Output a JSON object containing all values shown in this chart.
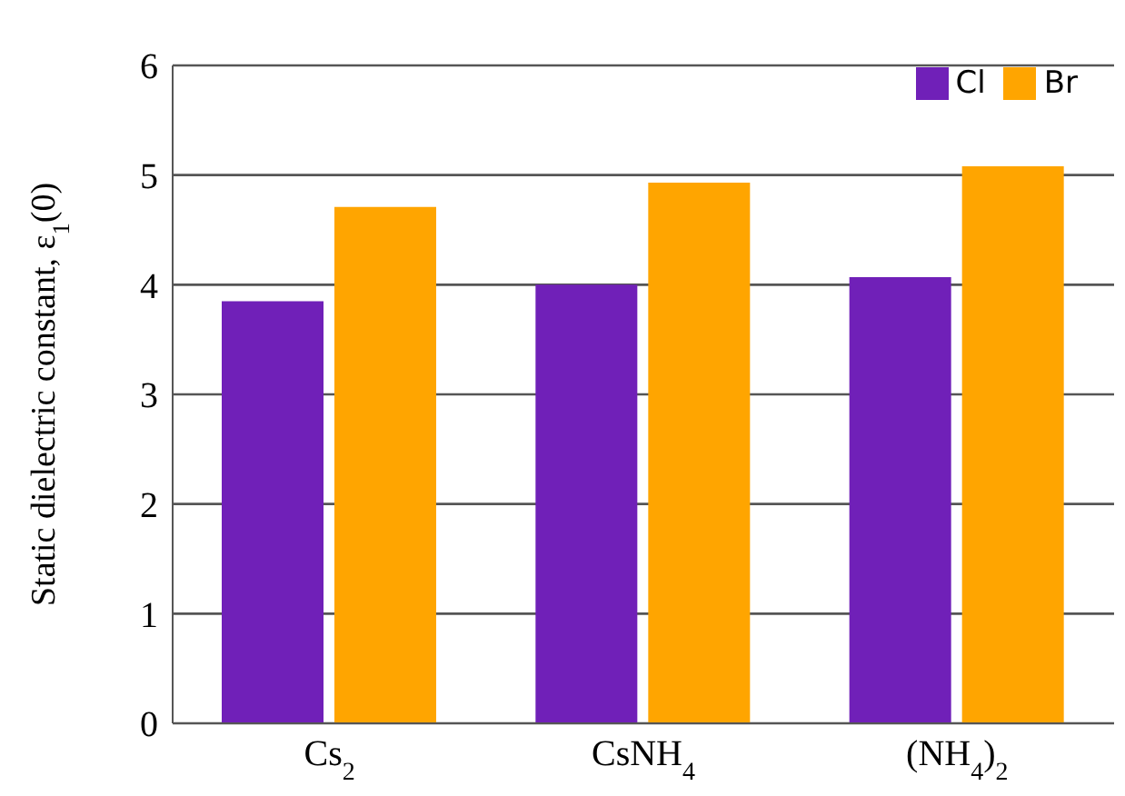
{
  "chart_data": {
    "type": "bar",
    "ylabel": "Static dielectric constant, ε$_{1}$(0)",
    "categories": [
      "Cs$_{2}$",
      "CsNH$_{4}$",
      "(NH$_{4}$)$_{2}$"
    ],
    "series": [
      {
        "name": "Cl",
        "color": "#7020b8",
        "values": [
          3.85,
          4.0,
          4.07
        ]
      },
      {
        "name": "Br",
        "color": "#ffa500",
        "values": [
          4.71,
          4.93,
          5.08
        ]
      }
    ],
    "ylim": [
      0,
      6
    ],
    "yticks": [
      0,
      1,
      2,
      3,
      4,
      5,
      6
    ],
    "grid": "y",
    "legend": "top right"
  }
}
